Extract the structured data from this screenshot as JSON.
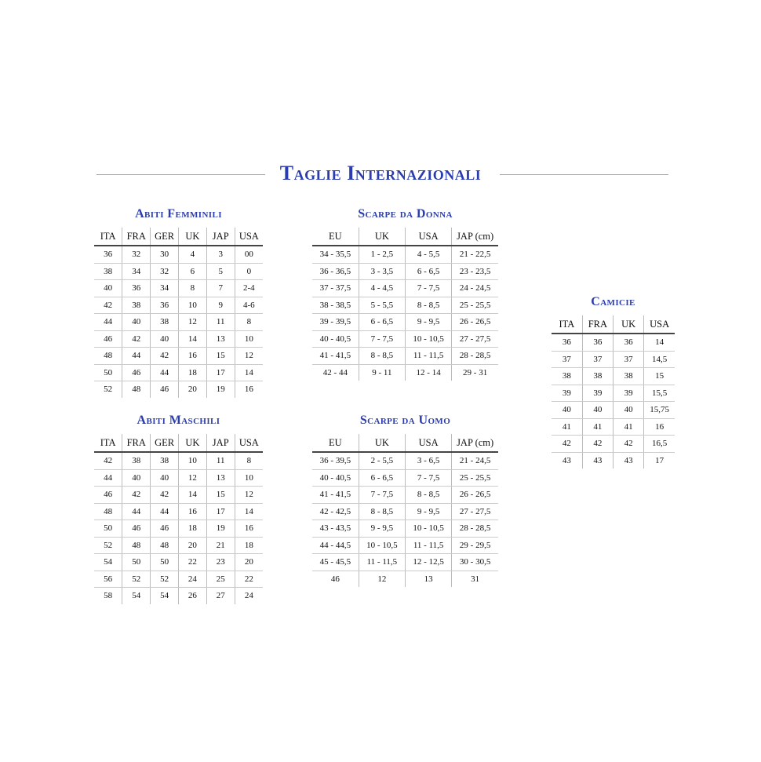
{
  "title": "Taglie Internazionali",
  "tables": [
    {
      "id": "abiti-femminili",
      "title": "Abiti Femminili",
      "headers": [
        "ITA",
        "FRA",
        "GER",
        "UK",
        "JAP",
        "USA"
      ],
      "rows": [
        [
          "36",
          "32",
          "30",
          "4",
          "3",
          "00"
        ],
        [
          "38",
          "34",
          "32",
          "6",
          "5",
          "0"
        ],
        [
          "40",
          "36",
          "34",
          "8",
          "7",
          "2-4"
        ],
        [
          "42",
          "38",
          "36",
          "10",
          "9",
          "4-6"
        ],
        [
          "44",
          "40",
          "38",
          "12",
          "11",
          "8"
        ],
        [
          "46",
          "42",
          "40",
          "14",
          "13",
          "10"
        ],
        [
          "48",
          "44",
          "42",
          "16",
          "15",
          "12"
        ],
        [
          "50",
          "46",
          "44",
          "18",
          "17",
          "14"
        ],
        [
          "52",
          "48",
          "46",
          "20",
          "19",
          "16"
        ]
      ]
    },
    {
      "id": "scarpe-da-donna",
      "title": "Scarpe da Donna",
      "headers": [
        "EU",
        "UK",
        "USA",
        "JAP (cm)"
      ],
      "rows": [
        [
          "34 - 35,5",
          "1 - 2,5",
          "4 - 5,5",
          "21 - 22,5"
        ],
        [
          "36 - 36,5",
          "3 - 3,5",
          "6 - 6,5",
          "23 - 23,5"
        ],
        [
          "37 - 37,5",
          "4 - 4,5",
          "7 - 7,5",
          "24 - 24,5"
        ],
        [
          "38 - 38,5",
          "5 - 5,5",
          "8 - 8,5",
          "25 - 25,5"
        ],
        [
          "39 - 39,5",
          "6 - 6,5",
          "9 - 9,5",
          "26 - 26,5"
        ],
        [
          "40 - 40,5",
          "7 - 7,5",
          "10 - 10,5",
          "27 - 27,5"
        ],
        [
          "41 - 41,5",
          "8 - 8,5",
          "11 - 11,5",
          "28 - 28,5"
        ],
        [
          "42 - 44",
          "9 - 11",
          "12 - 14",
          "29 - 31"
        ]
      ]
    },
    {
      "id": "camicie",
      "title": "Camicie",
      "headers": [
        "ITA",
        "FRA",
        "UK",
        "USA"
      ],
      "rows": [
        [
          "36",
          "36",
          "36",
          "14"
        ],
        [
          "37",
          "37",
          "37",
          "14,5"
        ],
        [
          "38",
          "38",
          "38",
          "15"
        ],
        [
          "39",
          "39",
          "39",
          "15,5"
        ],
        [
          "40",
          "40",
          "40",
          "15,75"
        ],
        [
          "41",
          "41",
          "41",
          "16"
        ],
        [
          "42",
          "42",
          "42",
          "16,5"
        ],
        [
          "43",
          "43",
          "43",
          "17"
        ]
      ]
    },
    {
      "id": "abiti-maschili",
      "title": "Abiti Maschili",
      "headers": [
        "ITA",
        "FRA",
        "GER",
        "UK",
        "JAP",
        "USA"
      ],
      "rows": [
        [
          "42",
          "38",
          "38",
          "10",
          "11",
          "8"
        ],
        [
          "44",
          "40",
          "40",
          "12",
          "13",
          "10"
        ],
        [
          "46",
          "42",
          "42",
          "14",
          "15",
          "12"
        ],
        [
          "48",
          "44",
          "44",
          "16",
          "17",
          "14"
        ],
        [
          "50",
          "46",
          "46",
          "18",
          "19",
          "16"
        ],
        [
          "52",
          "48",
          "48",
          "20",
          "21",
          "18"
        ],
        [
          "54",
          "50",
          "50",
          "22",
          "23",
          "20"
        ],
        [
          "56",
          "52",
          "52",
          "24",
          "25",
          "22"
        ],
        [
          "58",
          "54",
          "54",
          "26",
          "27",
          "24"
        ]
      ]
    },
    {
      "id": "scarpe-da-uomo",
      "title": "Scarpe da Uomo",
      "headers": [
        "EU",
        "UK",
        "USA",
        "JAP (cm)"
      ],
      "rows": [
        [
          "36 - 39,5",
          "2 - 5,5",
          "3 - 6,5",
          "21 - 24,5"
        ],
        [
          "40 - 40,5",
          "6 - 6,5",
          "7 - 7,5",
          "25 - 25,5"
        ],
        [
          "41 - 41,5",
          "7 - 7,5",
          "8 - 8,5",
          "26 - 26,5"
        ],
        [
          "42 - 42,5",
          "8 - 8,5",
          "9 - 9,5",
          "27 - 27,5"
        ],
        [
          "43 - 43,5",
          "9 - 9,5",
          "10 - 10,5",
          "28 - 28,5"
        ],
        [
          "44 - 44,5",
          "10 - 10,5",
          "11 - 11,5",
          "29 - 29,5"
        ],
        [
          "45 - 45,5",
          "11 - 11,5",
          "12 - 12,5",
          "30 - 30,5"
        ],
        [
          "46",
          "12",
          "13",
          "31"
        ]
      ]
    }
  ]
}
